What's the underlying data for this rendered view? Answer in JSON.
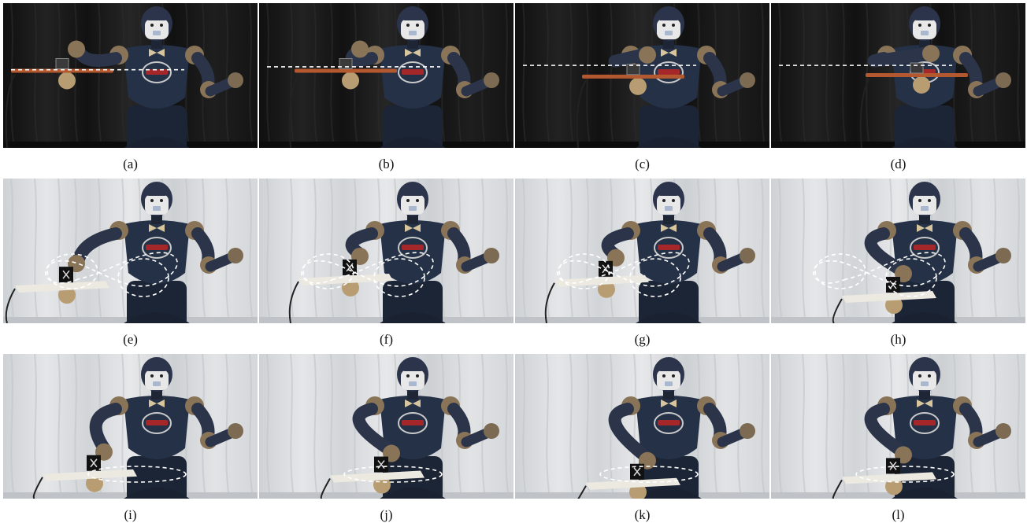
{
  "figure": {
    "panels": [
      {
        "id": "a",
        "caption": "(a)",
        "scene": "dark",
        "path": "line",
        "line_y": 0.46,
        "tray_side": "left",
        "tray_y": 0.47
      },
      {
        "id": "b",
        "caption": "(b)",
        "scene": "dark",
        "path": "line",
        "line_y": 0.44,
        "tray_side": "left-mid",
        "tray_y": 0.47
      },
      {
        "id": "c",
        "caption": "(c)",
        "scene": "dark",
        "path": "line",
        "line_y": 0.43,
        "tray_side": "center",
        "tray_y": 0.51
      },
      {
        "id": "d",
        "caption": "(d)",
        "scene": "dark",
        "path": "line",
        "line_y": 0.43,
        "tray_side": "right",
        "tray_y": 0.5
      },
      {
        "id": "e",
        "caption": "(e)",
        "scene": "light",
        "path": "eight",
        "tray_side": "left",
        "tray_y": 0.74
      },
      {
        "id": "f",
        "caption": "(f)",
        "scene": "light",
        "path": "eight",
        "tray_side": "left-mid",
        "tray_y": 0.69
      },
      {
        "id": "g",
        "caption": "(g)",
        "scene": "light",
        "path": "eight",
        "tray_side": "left-mid",
        "tray_y": 0.7
      },
      {
        "id": "h",
        "caption": "(h)",
        "scene": "light",
        "path": "eight",
        "tray_side": "center",
        "tray_y": 0.81
      },
      {
        "id": "i",
        "caption": "(i)",
        "scene": "light",
        "path": "ellipse",
        "tray_side": "left-mid",
        "tray_y": 0.83
      },
      {
        "id": "j",
        "caption": "(j)",
        "scene": "light",
        "path": "ellipse",
        "tray_side": "center",
        "tray_y": 0.84
      },
      {
        "id": "k",
        "caption": "(k)",
        "scene": "light",
        "path": "ellipse",
        "tray_side": "center",
        "tray_y": 0.89
      },
      {
        "id": "l",
        "caption": "(l)",
        "scene": "light",
        "path": "ellipse",
        "tray_side": "center",
        "tray_y": 0.85
      }
    ],
    "colors": {
      "dark_bg": "#161616",
      "light_bg": "#d9dbdd",
      "robot_body": "#243147",
      "robot_shell": "#2b3448",
      "joint": "#8a7458",
      "face": "#e8e8e8",
      "tray_dark": "#b4582f",
      "tray_light": "#ece9e1",
      "path": "#ffffff"
    }
  }
}
